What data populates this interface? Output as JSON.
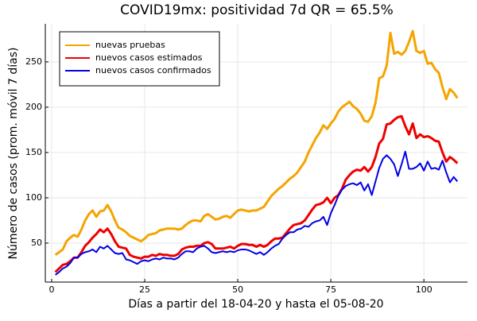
{
  "chart_data": {
    "type": "line",
    "title": "COVID19mx: positividad 7d QR = 65.5%",
    "x_label": "Días a partir del 18-04-20 y hasta el 05-08-20",
    "y_label": "Número de casos (prom. móvil 7 días)",
    "x": [
      1,
      2,
      3,
      4,
      5,
      6,
      7,
      8,
      9,
      10,
      11,
      12,
      13,
      14,
      15,
      16,
      17,
      18,
      19,
      20,
      21,
      22,
      23,
      24,
      25,
      26,
      27,
      28,
      29,
      30,
      31,
      32,
      33,
      34,
      35,
      36,
      37,
      38,
      39,
      40,
      41,
      42,
      43,
      44,
      45,
      46,
      47,
      48,
      49,
      50,
      51,
      52,
      53,
      54,
      55,
      56,
      57,
      58,
      59,
      60,
      61,
      62,
      63,
      64,
      65,
      66,
      67,
      68,
      69,
      70,
      71,
      72,
      73,
      74,
      75,
      76,
      77,
      78,
      79,
      80,
      81,
      82,
      83,
      84,
      85,
      86,
      87,
      88,
      89,
      90,
      91,
      92,
      93,
      94,
      95,
      96,
      97,
      98,
      99,
      100,
      101,
      102,
      103,
      104,
      105,
      106,
      107,
      108,
      109
    ],
    "series": [
      {
        "name": "nuevas pruebas",
        "color": "#f5a400",
        "values": [
          37,
          40,
          43,
          52,
          56,
          59,
          57,
          65,
          75,
          82,
          86,
          79,
          85,
          86,
          92,
          85,
          75,
          67,
          65,
          62,
          58,
          56,
          54,
          52,
          55,
          59,
          60,
          61,
          64,
          65,
          66,
          66,
          66,
          65,
          66,
          70,
          73,
          75,
          75,
          74,
          80,
          82,
          79,
          76,
          77,
          79,
          80,
          78,
          82,
          86,
          87,
          86,
          85,
          86,
          86,
          88,
          90,
          96,
          102,
          106,
          110,
          113,
          117,
          121,
          124,
          128,
          134,
          140,
          150,
          158,
          166,
          172,
          180,
          176,
          182,
          187,
          195,
          200,
          203,
          206,
          201,
          198,
          193,
          185,
          184,
          190,
          205,
          232,
          234,
          246,
          282,
          259,
          261,
          258,
          262,
          272,
          284,
          262,
          260,
          262,
          248,
          249,
          242,
          238,
          222,
          209,
          220,
          216,
          210
        ]
      },
      {
        "name": "nuevos casos estimados",
        "color": "#ee0000",
        "values": [
          18,
          22,
          26,
          27,
          30,
          34,
          34,
          40,
          47,
          51,
          56,
          60,
          65,
          62,
          66,
          60,
          52,
          46,
          45,
          44,
          37,
          35,
          34,
          33,
          35,
          35,
          37,
          36,
          38,
          37,
          37,
          36,
          36,
          38,
          43,
          45,
          46,
          46,
          47,
          47,
          50,
          51,
          49,
          44,
          44,
          44,
          45,
          46,
          44,
          47,
          49,
          49,
          48,
          48,
          46,
          48,
          46,
          48,
          52,
          55,
          55,
          56,
          61,
          66,
          70,
          71,
          72,
          75,
          81,
          87,
          92,
          93,
          95,
          100,
          94,
          100,
          103,
          110,
          120,
          125,
          129,
          131,
          130,
          134,
          129,
          134,
          145,
          160,
          165,
          181,
          182,
          186,
          189,
          190,
          179,
          170,
          182,
          166,
          170,
          167,
          168,
          166,
          163,
          162,
          150,
          140,
          145,
          142,
          138
        ]
      },
      {
        "name": "nuevos casos confirmados",
        "color": "#0000e6",
        "values": [
          15,
          18,
          22,
          24,
          28,
          34,
          34,
          38,
          40,
          41,
          43,
          40,
          46,
          44,
          47,
          43,
          39,
          38,
          39,
          32,
          31,
          29,
          27,
          30,
          31,
          30,
          32,
          33,
          32,
          34,
          33,
          33,
          32,
          34,
          38,
          41,
          41,
          40,
          44,
          46,
          47,
          44,
          40,
          39,
          40,
          41,
          40,
          41,
          40,
          42,
          43,
          43,
          42,
          40,
          38,
          40,
          37,
          40,
          44,
          47,
          49,
          55,
          59,
          62,
          62,
          65,
          66,
          69,
          68,
          72,
          74,
          75,
          79,
          70,
          83,
          92,
          102,
          109,
          113,
          115,
          116,
          114,
          117,
          108,
          115,
          103,
          118,
          133,
          143,
          147,
          143,
          137,
          124,
          137,
          151,
          132,
          132,
          134,
          138,
          130,
          140,
          132,
          133,
          131,
          141,
          128,
          117,
          123,
          118
        ]
      }
    ],
    "xlim": [
      -1.7,
      111.7
    ],
    "ylim": [
      7,
      292
    ],
    "xticks": [
      0,
      25,
      50,
      75,
      100
    ],
    "yticks": [
      50,
      100,
      150,
      200,
      250
    ],
    "grid": true,
    "legend": "top-left"
  }
}
